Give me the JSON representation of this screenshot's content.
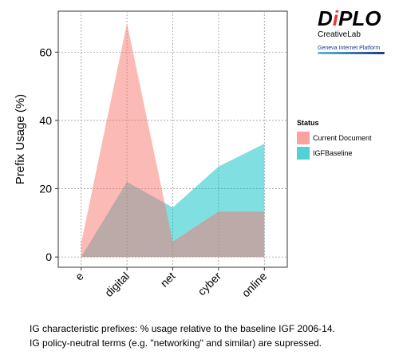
{
  "logo": {
    "main_pre": "D",
    "main_accent": "i",
    "main_post": "PLO",
    "sub": "CreativeLab",
    "platform": "Geneva Internet Platform"
  },
  "legend": {
    "title": "Status"
  },
  "caption": {
    "line1": "IG characteristic prefixes: % usage relative to the baseline IGF 2006-14.",
    "line2": "IG policy-neutral terms (e.g. \"networking\" and similar) are supressed."
  },
  "chart_data": {
    "type": "area",
    "title": "",
    "xlabel": "",
    "ylabel": "Prefix Usage (%)",
    "categories": [
      "e",
      "digital",
      "net",
      "cyber",
      "online"
    ],
    "ylim": [
      -3,
      72
    ],
    "yticks": [
      0,
      20,
      40,
      60
    ],
    "grid": true,
    "legend_position": "right",
    "series": [
      {
        "name": "Current Document",
        "values": [
          4.0,
          68.5,
          4.5,
          13.3,
          13.3
        ],
        "color": "#f8766d"
      },
      {
        "name": "IGFBaseline",
        "values": [
          0.0,
          22.0,
          14.5,
          26.5,
          33.2
        ],
        "color": "#00bfc4"
      }
    ],
    "overlap_color": "#bfa8a6"
  }
}
